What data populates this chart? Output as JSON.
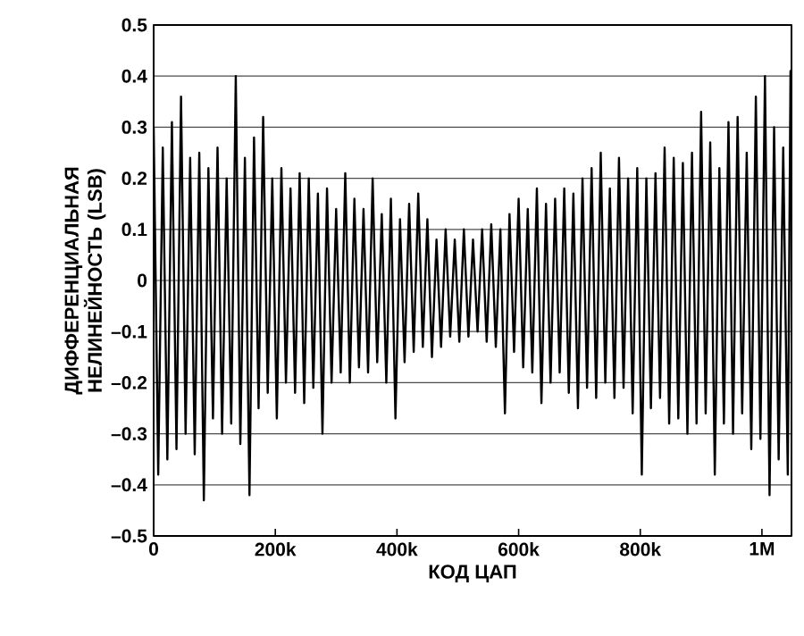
{
  "chart_data": {
    "type": "line",
    "xlabel": "КОД ЦАП",
    "ylabel": "ДИФФЕРЕНЦИАЛЬНАЯ НЕЛИНЕЙНОСТЬ (LSB)",
    "xlim": [
      0,
      1048576
    ],
    "xticks": [
      {
        "value": 0,
        "label": "0"
      },
      {
        "value": 200000,
        "label": "200k"
      },
      {
        "value": 400000,
        "label": "400k"
      },
      {
        "value": 600000,
        "label": "600k"
      },
      {
        "value": 800000,
        "label": "800k"
      },
      {
        "value": 1000000,
        "label": "1M"
      }
    ],
    "ylim": [
      -0.5,
      0.5
    ],
    "yticks": [
      {
        "value": -0.5,
        "label": "–0.5"
      },
      {
        "value": -0.4,
        "label": "–0.4"
      },
      {
        "value": -0.3,
        "label": "–0.3"
      },
      {
        "value": -0.2,
        "label": "–0.2"
      },
      {
        "value": -0.1,
        "label": "–0.1"
      },
      0,
      0.1,
      0.2,
      0.3,
      0.4,
      0.5
    ],
    "grid": "y",
    "marker": "none",
    "line_style": "solid",
    "series": [
      {
        "color": "#000000",
        "x": [
          0,
          7500,
          15000,
          22500,
          30000,
          37500,
          45000,
          52500,
          60000,
          67500,
          75000,
          82500,
          90000,
          97500,
          105000,
          112500,
          120000,
          127500,
          135000,
          142500,
          150000,
          157500,
          165000,
          172500,
          180000,
          187500,
          195000,
          202500,
          210000,
          217500,
          225000,
          232500,
          240000,
          247500,
          255000,
          262500,
          270000,
          277500,
          285000,
          292500,
          300000,
          307500,
          315000,
          322500,
          330000,
          337500,
          345000,
          352500,
          360000,
          367500,
          375000,
          382500,
          390000,
          397500,
          405000,
          412500,
          420000,
          427500,
          435000,
          442500,
          450000,
          457500,
          465000,
          472500,
          480000,
          487500,
          495000,
          502500,
          510000,
          517500,
          525000,
          532500,
          540000,
          547500,
          555000,
          562500,
          570000,
          577500,
          585000,
          592500,
          600000,
          607500,
          615000,
          622500,
          630000,
          637500,
          645000,
          652500,
          660000,
          667500,
          675000,
          682500,
          690000,
          697500,
          705000,
          712500,
          720000,
          727500,
          735000,
          742500,
          750000,
          757500,
          765000,
          772500,
          780000,
          787500,
          795000,
          802500,
          810000,
          817500,
          825000,
          832500,
          840000,
          847500,
          855000,
          862500,
          870000,
          877500,
          885000,
          892500,
          900000,
          907500,
          915000,
          922500,
          930000,
          937500,
          945000,
          952500,
          960000,
          967500,
          975000,
          982500,
          990000,
          997500,
          1005000,
          1012500,
          1020000,
          1027500,
          1035000,
          1042500,
          1047000
        ],
        "values": [
          0.3,
          -0.38,
          0.26,
          -0.35,
          0.31,
          -0.33,
          0.36,
          -0.3,
          0.24,
          -0.34,
          0.25,
          -0.43,
          0.22,
          -0.27,
          0.26,
          -0.3,
          0.2,
          -0.28,
          0.4,
          -0.32,
          0.24,
          -0.42,
          0.28,
          -0.25,
          0.32,
          -0.22,
          0.2,
          -0.27,
          0.22,
          -0.2,
          0.18,
          -0.22,
          0.21,
          -0.24,
          0.2,
          -0.21,
          0.17,
          -0.3,
          0.18,
          -0.2,
          0.14,
          -0.18,
          0.21,
          -0.2,
          0.16,
          -0.17,
          0.14,
          -0.18,
          0.2,
          -0.16,
          0.13,
          -0.2,
          0.16,
          -0.27,
          0.12,
          -0.16,
          0.15,
          -0.14,
          0.17,
          -0.13,
          0.12,
          -0.15,
          0.08,
          -0.13,
          0.1,
          -0.11,
          0.08,
          -0.12,
          0.1,
          -0.11,
          0.08,
          -0.1,
          0.1,
          -0.12,
          0.11,
          -0.13,
          0.1,
          -0.26,
          0.13,
          -0.14,
          0.16,
          -0.17,
          0.14,
          -0.18,
          0.18,
          -0.24,
          0.15,
          -0.2,
          0.16,
          -0.18,
          0.18,
          -0.22,
          0.17,
          -0.25,
          0.2,
          -0.21,
          0.22,
          -0.23,
          0.25,
          -0.2,
          0.18,
          -0.23,
          0.24,
          -0.21,
          0.2,
          -0.26,
          0.22,
          -0.38,
          0.2,
          -0.25,
          0.21,
          -0.23,
          0.26,
          -0.28,
          0.24,
          -0.27,
          0.23,
          -0.3,
          0.25,
          -0.28,
          0.33,
          -0.26,
          0.27,
          -0.38,
          0.22,
          -0.28,
          0.31,
          -0.3,
          0.32,
          -0.26,
          0.25,
          -0.33,
          0.36,
          -0.31,
          0.4,
          -0.42,
          0.3,
          -0.35,
          0.26,
          -0.38,
          0.41
        ]
      }
    ]
  }
}
